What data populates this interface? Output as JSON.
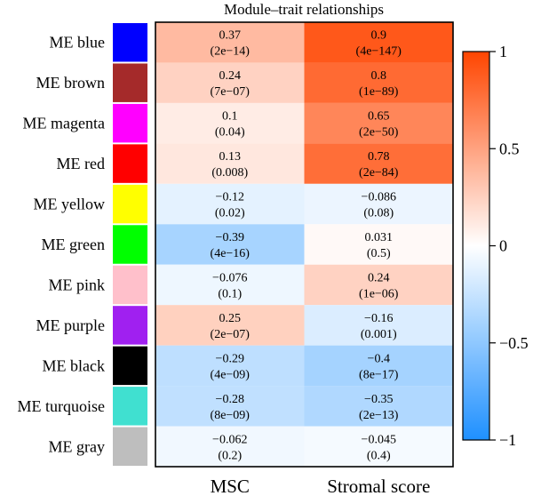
{
  "chart_data": {
    "type": "heatmap",
    "title": "Module–trait relationships",
    "columns": [
      "MSC",
      "Stromal score"
    ],
    "rows": [
      {
        "label": "ME blue",
        "color": "#0000FF",
        "values": [
          0.37,
          0.9
        ],
        "value_text": [
          "0.37",
          "0.9"
        ],
        "pvalue_text": [
          "(2e−14)",
          "(4e−147)"
        ]
      },
      {
        "label": "ME brown",
        "color": "#A52A2A",
        "values": [
          0.24,
          0.8
        ],
        "value_text": [
          "0.24",
          "0.8"
        ],
        "pvalue_text": [
          "(7e−07)",
          "(1e−89)"
        ]
      },
      {
        "label": "ME magenta",
        "color": "#FF00FF",
        "values": [
          0.1,
          0.65
        ],
        "value_text": [
          "0.1",
          "0.65"
        ],
        "pvalue_text": [
          "(0.04)",
          "(2e−50)"
        ]
      },
      {
        "label": "ME red",
        "color": "#FF0000",
        "values": [
          0.13,
          0.78
        ],
        "value_text": [
          "0.13",
          "0.78"
        ],
        "pvalue_text": [
          "(0.008)",
          "(2e−84)"
        ]
      },
      {
        "label": "ME yellow",
        "color": "#FFFF00",
        "values": [
          -0.12,
          -0.086
        ],
        "value_text": [
          "−0.12",
          "−0.086"
        ],
        "pvalue_text": [
          "(0.02)",
          "(0.08)"
        ]
      },
      {
        "label": "ME green",
        "color": "#00FF00",
        "values": [
          -0.39,
          0.031
        ],
        "value_text": [
          "−0.39",
          "0.031"
        ],
        "pvalue_text": [
          "(4e−16)",
          "(0.5)"
        ]
      },
      {
        "label": "ME pink",
        "color": "#FFC0CB",
        "values": [
          -0.076,
          0.24
        ],
        "value_text": [
          "−0.076",
          "0.24"
        ],
        "pvalue_text": [
          "(0.1)",
          "(1e−06)"
        ]
      },
      {
        "label": "ME purple",
        "color": "#A020F0",
        "values": [
          0.25,
          -0.16
        ],
        "value_text": [
          "0.25",
          "−0.16"
        ],
        "pvalue_text": [
          "(2e−07)",
          "(0.001)"
        ]
      },
      {
        "label": "ME black",
        "color": "#000000",
        "values": [
          -0.29,
          -0.4
        ],
        "value_text": [
          "−0.29",
          "−0.4"
        ],
        "pvalue_text": [
          "(4e−09)",
          "(8e−17)"
        ]
      },
      {
        "label": "ME turquoise",
        "color": "#40E0D0",
        "values": [
          -0.28,
          -0.35
        ],
        "value_text": [
          "−0.28",
          "−0.35"
        ],
        "pvalue_text": [
          "(8e−09)",
          "(2e−13)"
        ]
      },
      {
        "label": "ME gray",
        "color": "#BEBEBE",
        "values": [
          -0.062,
          -0.045
        ],
        "value_text": [
          "−0.062",
          "−0.045"
        ],
        "pvalue_text": [
          "(0.2)",
          "(0.4)"
        ]
      }
    ],
    "color_scale": {
      "min": -1,
      "max": 1,
      "low_color": "#1E90FF",
      "mid_color": "#FFFFFF",
      "high_color": "#FF4500",
      "ticks": [
        1,
        0.5,
        0,
        -0.5,
        -1
      ],
      "tick_labels": [
        "1",
        "0.5",
        "0",
        "−0.5",
        "−1"
      ]
    }
  }
}
